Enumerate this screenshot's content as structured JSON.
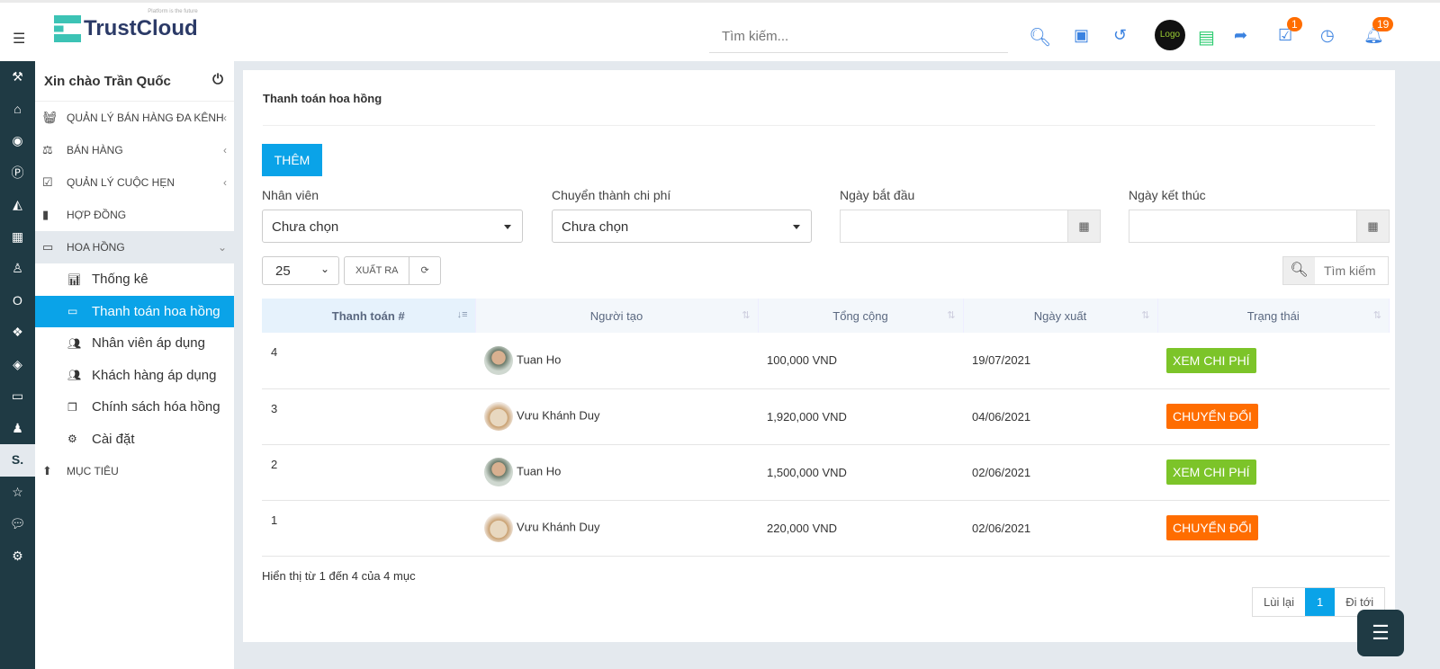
{
  "header": {
    "logo_text": "TrustCloud",
    "logo_tagline": "Platform is the future",
    "search_placeholder": "Tìm kiếm...",
    "tasks_badge": "1",
    "notifications_badge": "19",
    "avatar_text": "Logo"
  },
  "sidebar": {
    "greeting": "Xin chào Trần Quốc",
    "items": [
      {
        "label": "QUẢN LÝ BÁN HÀNG ĐA KÊNH"
      },
      {
        "label": "BÁN HÀNG"
      },
      {
        "label": "QUẢN LÝ CUỘC HẸN"
      },
      {
        "label": "HỢP ĐỒNG"
      },
      {
        "label": "HOA HỒNG"
      }
    ],
    "subitems": [
      {
        "label": "Thống kê"
      },
      {
        "label": "Thanh toán hoa hồng"
      },
      {
        "label": "Nhân viên áp dụng"
      },
      {
        "label": "Khách hàng áp dụng"
      },
      {
        "label": "Chính sách hóa hồng"
      },
      {
        "label": "Cài đặt"
      }
    ],
    "last_item": "MỤC TIÊU"
  },
  "main": {
    "title": "Thanh toán hoa hồng",
    "add_label": "THÊM",
    "filters": {
      "staff_label": "Nhân viên",
      "staff_value": "Chưa chọn",
      "expense_label": "Chuyển thành chi phí",
      "expense_value": "Chưa chọn",
      "start_label": "Ngày bắt đầu",
      "end_label": "Ngày kết thúc"
    },
    "page_length": "25",
    "export_label": "XUẤT RA",
    "table_search_placeholder": "Tìm kiếm",
    "columns": [
      "Thanh toán #",
      "Người tạo",
      "Tổng cộng",
      "Ngày xuất",
      "Trạng thái"
    ],
    "rows": [
      {
        "id": "4",
        "creator": "Tuan Ho",
        "total": "100,000 VND",
        "date": "19/07/2021",
        "status": "XEM CHI PHÍ"
      },
      {
        "id": "3",
        "creator": "Vưu Khánh Duy",
        "total": "1,920,000 VND",
        "date": "04/06/2021",
        "status": "CHUYỂN ĐỔI"
      },
      {
        "id": "2",
        "creator": "Tuan Ho",
        "total": "1,500,000 VND",
        "date": "02/06/2021",
        "status": "XEM CHI PHÍ"
      },
      {
        "id": "1",
        "creator": "Vưu Khánh Duy",
        "total": "220,000 VND",
        "date": "02/06/2021",
        "status": "CHUYỂN ĐỔI"
      }
    ],
    "info": "Hiển thị từ 1 đến 4 của 4 mục",
    "pagination": {
      "prev": "Lùi lại",
      "current": "1",
      "next": "Đi tới"
    }
  },
  "colors": {
    "accent": "#0aa3e8",
    "status_view": "#7cc429",
    "status_convert": "#ff6d00",
    "rail": "#1f3a44"
  }
}
